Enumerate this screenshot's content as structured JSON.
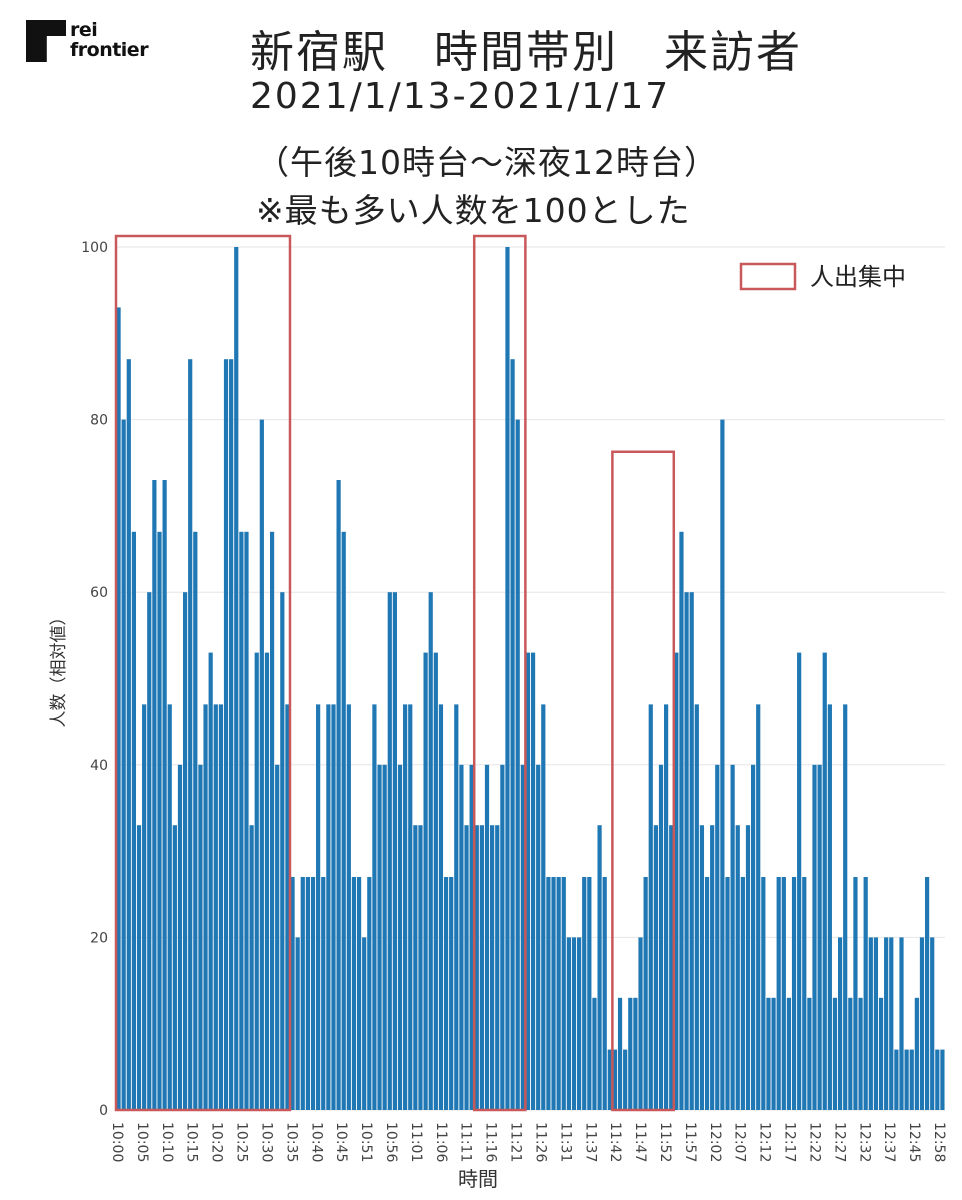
{
  "logo": {
    "line1": "rei",
    "line2": "frontier"
  },
  "chart_data": {
    "type": "bar",
    "title": "新宿駅　時間帯別　来訪者",
    "subtitle_lines": [
      "2021/1/13-2021/1/17",
      "（午後10時台～深夜12時台）",
      "※最も多い人数を100とした"
    ],
    "xlabel": "時間",
    "ylabel": "人数（相対値）",
    "ylim": [
      0,
      100
    ],
    "yticks": [
      0,
      20,
      40,
      60,
      80,
      100
    ],
    "grid": true,
    "legend": {
      "label": "人出集中",
      "position": "top-right"
    },
    "bar_color": "#1f77b4",
    "highlight_color": "#c9585a",
    "x_tick_labels": [
      "10:00",
      "10:05",
      "10:10",
      "10:15",
      "10:20",
      "10:25",
      "10:30",
      "10:35",
      "10:40",
      "10:45",
      "10:51",
      "10:56",
      "11:01",
      "11:06",
      "11:11",
      "11:16",
      "11:21",
      "11:26",
      "11:31",
      "11:37",
      "11:42",
      "11:47",
      "11:52",
      "11:57",
      "12:02",
      "12:07",
      "12:12",
      "12:17",
      "12:22",
      "12:27",
      "12:32",
      "12:37",
      "12:45",
      "12:58"
    ],
    "values": [
      93,
      80,
      87,
      67,
      33,
      47,
      60,
      73,
      67,
      73,
      47,
      33,
      40,
      60,
      87,
      67,
      40,
      47,
      53,
      47,
      47,
      87,
      87,
      100,
      67,
      67,
      33,
      53,
      80,
      53,
      67,
      40,
      60,
      47,
      27,
      20,
      27,
      27,
      27,
      47,
      27,
      47,
      47,
      73,
      67,
      47,
      27,
      27,
      20,
      27,
      47,
      40,
      40,
      60,
      60,
      40,
      47,
      47,
      33,
      33,
      53,
      60,
      53,
      47,
      27,
      27,
      47,
      40,
      33,
      40,
      33,
      33,
      40,
      33,
      33,
      40,
      100,
      87,
      80,
      40,
      53,
      53,
      40,
      47,
      27,
      27,
      27,
      27,
      20,
      20,
      20,
      27,
      27,
      13,
      33,
      27,
      7,
      7,
      13,
      7,
      13,
      13,
      20,
      27,
      47,
      33,
      40,
      47,
      33,
      53,
      67,
      60,
      60,
      47,
      33,
      27,
      33,
      40,
      80,
      27,
      40,
      33,
      27,
      33,
      40,
      47,
      27,
      13,
      13,
      27,
      27,
      13,
      27,
      53,
      27,
      13,
      40,
      40,
      53,
      47,
      13,
      20,
      47,
      13,
      27,
      13,
      27,
      20,
      20,
      13,
      20,
      20,
      7,
      20,
      7,
      7,
      13,
      20,
      27,
      20,
      7,
      7
    ],
    "highlight_ranges": [
      {
        "from_index": 0,
        "to_index": 33,
        "top": 100
      },
      {
        "from_index": 70,
        "to_index": 79,
        "top": 100
      },
      {
        "from_index": 97,
        "to_index": 108,
        "top": 75
      }
    ]
  }
}
